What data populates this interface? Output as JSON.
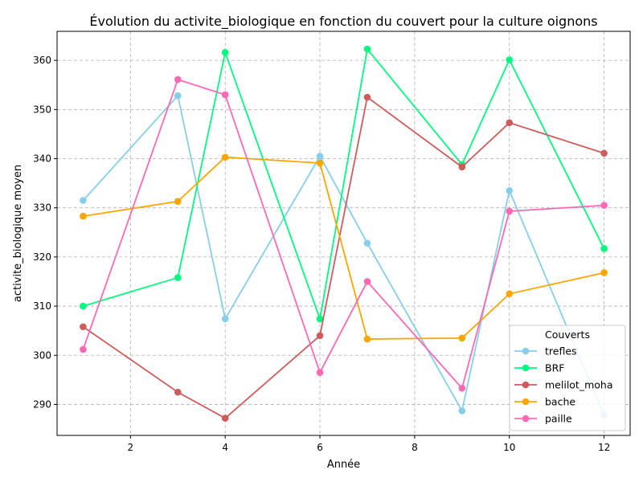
{
  "chart_data": {
    "type": "line",
    "title": "Évolution du activite_biologique en fonction du couvert pour la culture oignons",
    "xlabel": "Année",
    "ylabel": "activite_biologique moyen",
    "xlim": [
      0.45,
      12.55
    ],
    "ylim": [
      283.7,
      365.9
    ],
    "xticks": [
      2,
      4,
      6,
      8,
      10,
      12
    ],
    "yticks": [
      290,
      300,
      310,
      320,
      330,
      340,
      350,
      360
    ],
    "grid": true,
    "legend": {
      "title": "Couverts",
      "position": "lower-right"
    },
    "series": [
      {
        "name": "trefles",
        "color": "#87CEEB",
        "x": [
          1,
          3,
          4,
          6,
          7,
          9,
          10,
          12
        ],
        "y": [
          331.5,
          352.8,
          307.4,
          340.5,
          322.8,
          288.7,
          333.5,
          287.8
        ]
      },
      {
        "name": "BRF",
        "color": "#00FA7F",
        "x": [
          1,
          3,
          4,
          6,
          7,
          9,
          10,
          12
        ],
        "y": [
          310.0,
          315.8,
          361.6,
          307.4,
          362.3,
          338.8,
          360.1,
          321.7
        ]
      },
      {
        "name": "melilot_moha",
        "color": "#CD5C5C",
        "x": [
          1,
          3,
          4,
          6,
          7,
          9,
          10,
          12
        ],
        "y": [
          305.8,
          292.5,
          287.2,
          304.0,
          352.5,
          338.3,
          347.3,
          341.1
        ]
      },
      {
        "name": "bache",
        "color": "#FFA500",
        "x": [
          1,
          3,
          4,
          6,
          7,
          9,
          10,
          12
        ],
        "y": [
          328.3,
          331.3,
          340.3,
          339.1,
          303.3,
          303.5,
          312.5,
          316.8
        ]
      },
      {
        "name": "paille",
        "color": "#FF69B4",
        "x": [
          1,
          3,
          4,
          6,
          7,
          9,
          10,
          12
        ],
        "y": [
          301.2,
          356.1,
          353.0,
          296.5,
          315.0,
          293.3,
          329.3,
          330.5
        ]
      }
    ]
  }
}
